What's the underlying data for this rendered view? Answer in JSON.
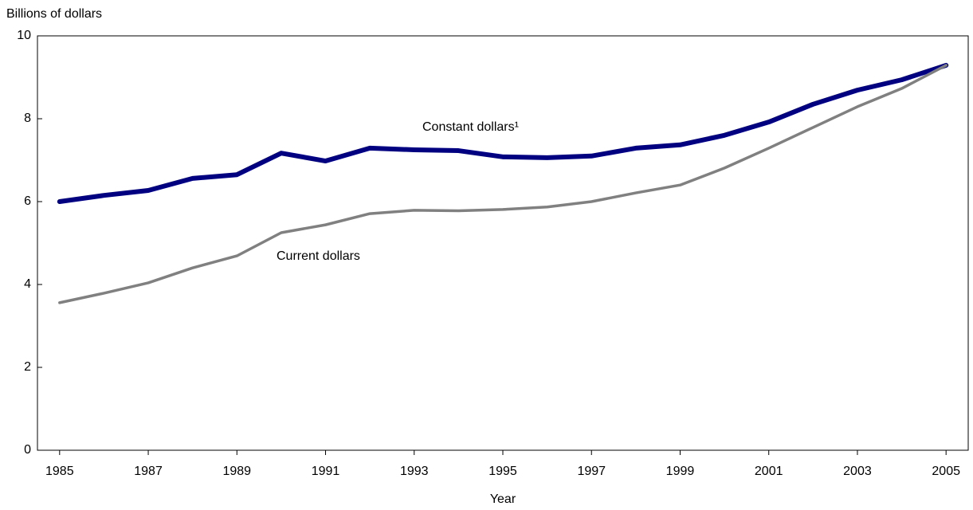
{
  "chart_data": {
    "type": "line",
    "y_label": "Billions of dollars",
    "x_label": "Year",
    "x": [
      1985,
      1986,
      1987,
      1988,
      1989,
      1990,
      1991,
      1992,
      1993,
      1994,
      1995,
      1996,
      1997,
      1998,
      1999,
      2000,
      2001,
      2002,
      2003,
      2004,
      2005
    ],
    "series": [
      {
        "name": "Constant dollars¹",
        "color": "#000080",
        "values": [
          6.0,
          6.15,
          6.27,
          6.56,
          6.65,
          7.17,
          6.98,
          7.29,
          7.25,
          7.23,
          7.08,
          7.06,
          7.1,
          7.29,
          7.37,
          7.6,
          7.92,
          8.35,
          8.69,
          8.94,
          9.29
        ]
      },
      {
        "name": "Current dollars",
        "color": "#808080",
        "values": [
          3.56,
          3.79,
          4.04,
          4.4,
          4.69,
          5.25,
          5.44,
          5.71,
          5.79,
          5.78,
          5.81,
          5.87,
          6.0,
          6.21,
          6.4,
          6.81,
          7.29,
          7.79,
          8.29,
          8.73,
          9.29
        ]
      }
    ],
    "xlim": [
      1984.5,
      2005.5
    ],
    "xticks": [
      1985,
      1987,
      1989,
      1991,
      1993,
      1995,
      1997,
      1999,
      2001,
      2003,
      2005
    ],
    "ylim": [
      0,
      10
    ],
    "yticks": [
      0,
      2,
      4,
      6,
      8,
      10
    ],
    "grid": false
  }
}
